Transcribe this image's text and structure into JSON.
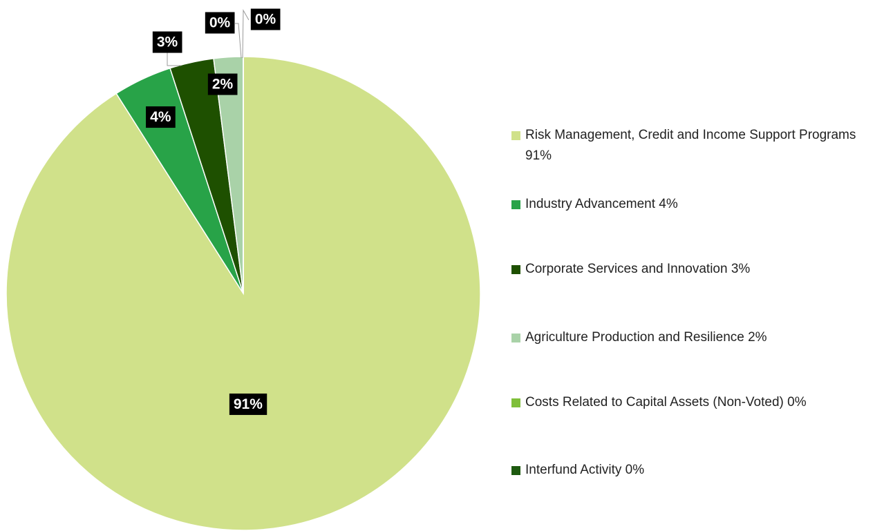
{
  "chart_data": {
    "type": "pie",
    "categories": [
      "Risk Management, Credit and Income Support Programs 91%",
      "Industry Advancement 4%",
      "Corporate Services and Innovation 3%",
      "Agriculture Production and Resilience 2%",
      "Costs Related to Capital Assets (Non-Voted) 0%",
      "Interfund Activity 0%"
    ],
    "values": [
      91,
      4,
      3,
      2,
      0,
      0
    ],
    "value_labels": [
      "91%",
      "4%",
      "3%",
      "2%",
      "0%",
      "0%"
    ],
    "colors": [
      "#d0e18a",
      "#28a348",
      "#1e5000",
      "#a9d2a8",
      "#7fbf3a",
      "#1e5a10"
    ],
    "legend": "right"
  }
}
